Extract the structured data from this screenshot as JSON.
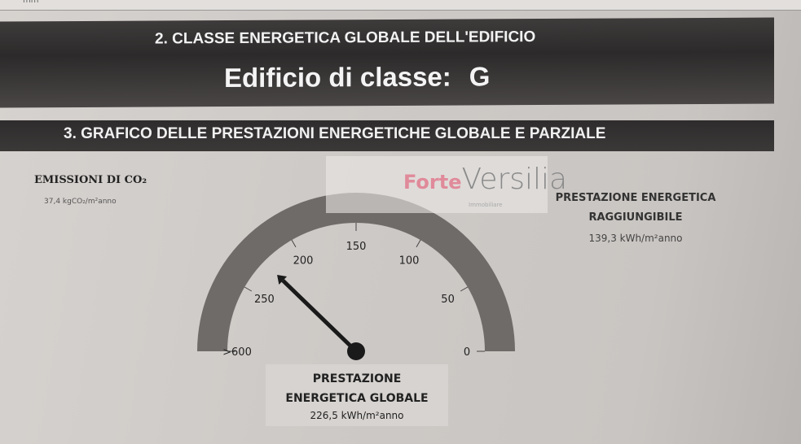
{
  "top_fragment": "mm",
  "section2": {
    "title": "2. CLASSE ENERGETICA GLOBALE DELL'EDIFICIO",
    "class_label": "Edificio di classe:",
    "class_value": "G"
  },
  "section3": {
    "title": "3. GRAFICO DELLE PRESTAZIONI ENERGETICHE GLOBALE E PARZIALE"
  },
  "co2": {
    "title": "EMISSIONI DI CO₂",
    "value": "37,4 kgCO₂/m²anno"
  },
  "raggiungibile": {
    "title_1": "PRESTAZIONE ENERGETICA",
    "title_2": "RAGGIUNGIBILE",
    "value": "139,3 kWh/m²anno"
  },
  "globale": {
    "title_1": "PRESTAZIONE",
    "title_2": "ENERGETICA GLOBALE",
    "value": "226,5 kWh/m²anno"
  },
  "watermark": {
    "brand_a": "Forte",
    "brand_b": "Versilia",
    "sub": "Immobiliare"
  },
  "gauge": {
    "ticks": [
      {
        "label": "0",
        "v": 0
      },
      {
        "label": "50",
        "v": 50
      },
      {
        "label": "100",
        "v": 100
      },
      {
        "label": "150",
        "v": 150
      },
      {
        "label": "200",
        "v": 200
      },
      {
        "label": "250",
        "v": 250
      },
      {
        "label": ">600",
        "v": 300
      }
    ],
    "max": 300,
    "needle_value": 226.5,
    "arc_color": "#6f6b69",
    "needle_color": "#1a1a1a"
  }
}
